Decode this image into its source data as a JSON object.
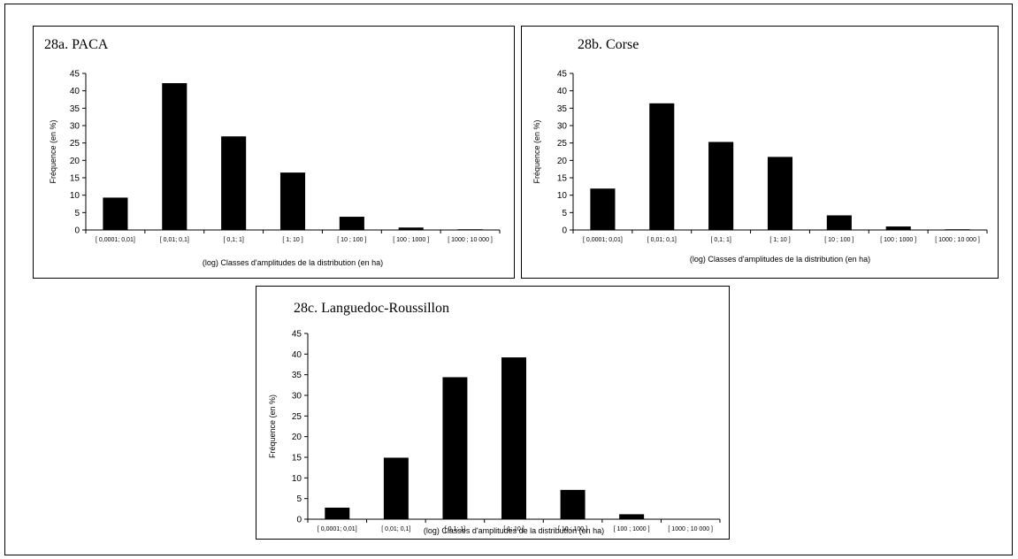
{
  "chart_data": [
    {
      "type": "bar",
      "title": "28a. PACA",
      "xlabel": "(log) Classes d'amplitudes de la distribution (en ha)",
      "ylabel": "Fréquence (en %)",
      "ylim": [
        0,
        45
      ],
      "yticks": [
        "0",
        "5",
        "10",
        "15",
        "20",
        "25",
        "30",
        "35",
        "40",
        "45"
      ],
      "categories": [
        "[ 0,0001; 0,01]",
        "[ 0,01; 0,1]",
        "[ 0,1; 1]",
        "[ 1; 10 ]",
        "[ 10 ; 100 ]",
        "[ 100 ; 1000 ]",
        "[ 1000 ; 10 000 ]"
      ],
      "values": [
        9.3,
        42.2,
        26.9,
        16.5,
        3.8,
        0.7,
        0.2
      ],
      "grid": false,
      "legend": "none"
    },
    {
      "type": "bar",
      "title": "28b. Corse",
      "xlabel": "(log) Classes d'amplitudes de la distribution (en ha)",
      "ylabel": "Fréquence (en %)",
      "ylim": [
        0,
        45
      ],
      "yticks": [
        "0",
        "5",
        "10",
        "15",
        "20",
        "25",
        "30",
        "35",
        "40",
        "45"
      ],
      "categories": [
        "[ 0,0001; 0,01]",
        "[ 0,01; 0,1]",
        "[ 0,1; 1]",
        "[ 1; 10 ]",
        "[ 10 ; 100 ]",
        "[ 100 ; 1000 ]",
        "[ 1000 ; 10 000 ]"
      ],
      "values": [
        11.9,
        36.4,
        25.3,
        21.0,
        4.2,
        1.0,
        0.2
      ],
      "grid": false,
      "legend": "none"
    },
    {
      "type": "bar",
      "title": "28c. Languedoc-Roussillon",
      "xlabel": "(log) Classes d'amplitudes de la distribution (en ha)",
      "ylabel": "Fréquence (en %)",
      "ylim": [
        0,
        45
      ],
      "yticks": [
        "0",
        "5",
        "10",
        "15",
        "20",
        "25",
        "30",
        "35",
        "40",
        "45"
      ],
      "categories": [
        "[ 0,0001; 0,01]",
        "[ 0,01; 0,1]",
        "[ 0,1; 1]",
        "[ 1; 10 ]",
        "[ 10 ; 100 ]",
        "[ 100 ; 1000 ]",
        "[ 1000 ; 10 000 ]"
      ],
      "values": [
        2.8,
        14.9,
        34.4,
        39.2,
        7.1,
        1.2,
        0
      ],
      "grid": false,
      "legend": "none"
    }
  ]
}
